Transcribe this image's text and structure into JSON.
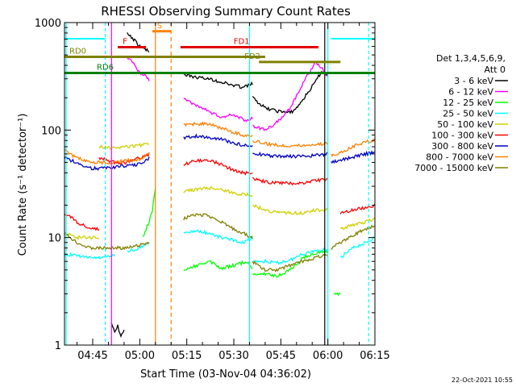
{
  "chart_data": {
    "type": "line",
    "title": "RHESSI Observing Summary Count Rates",
    "xlabel": "Start Time (03-Nov-04 04:36:02)",
    "ylabel": "Count Rate (s⁻¹ detector⁻¹)",
    "yscale": "log",
    "ylim": [
      1,
      1000
    ],
    "xlim_minutes": [
      36,
      135
    ],
    "x_tick_labels": [
      "04:45",
      "05:00",
      "05:15",
      "05:30",
      "05:45",
      "06:00",
      "06:15"
    ],
    "y_tick_labels": [
      "1",
      "10",
      "100",
      "1000"
    ],
    "legend_header": [
      "Det 1,3,4,5,6,9,",
      "Att 0"
    ],
    "legend_position": "right",
    "timestamp": "22-Oct-2021 10:55",
    "flags": [
      {
        "label": "S",
        "color": "#ff8000",
        "start": 64,
        "end": 70,
        "level": 830
      },
      {
        "label": "F",
        "color": "#e00000",
        "start": 53,
        "end": 62,
        "level": 590
      },
      {
        "label": "FD1",
        "color": "#e00000",
        "start": 73,
        "end": 117,
        "level": 590
      },
      {
        "label": "RD0",
        "color": "#808000",
        "start": 36,
        "end": 100,
        "level": 480
      },
      {
        "label": "FD2",
        "color": "#808000",
        "start": 98,
        "end": 124,
        "level": 430
      },
      {
        "label": "RD6",
        "color": "#008000",
        "start": 36,
        "end": 135,
        "level": 340
      }
    ],
    "series": [
      {
        "name": "3 - 6 keV",
        "color": "#000000",
        "segments": [
          [
            [
              51,
              1.6
            ],
            [
              52,
              1.3
            ],
            [
              53,
              1.5
            ],
            [
              54,
              1.2
            ],
            [
              55,
              1.4
            ]
          ],
          [
            [
              56,
              780
            ],
            [
              58,
              700
            ],
            [
              60,
              600
            ],
            [
              62,
              560
            ],
            [
              63,
              530
            ]
          ],
          [
            [
              74,
              330
            ],
            [
              78,
              310
            ],
            [
              82,
              300
            ],
            [
              86,
              280
            ],
            [
              90,
              260
            ],
            [
              93,
              250
            ],
            [
              96,
              270
            ]
          ],
          [
            [
              96,
              200
            ],
            [
              100,
              160
            ],
            [
              104,
              150
            ],
            [
              108,
              145
            ],
            [
              110,
              160
            ],
            [
              113,
              210
            ],
            [
              116,
              280
            ],
            [
              118,
              350
            ],
            [
              120,
              330
            ]
          ]
        ]
      },
      {
        "name": "6 - 12 keV",
        "color": "#ff00ff",
        "segments": [
          [
            [
              56,
              470
            ],
            [
              58,
              420
            ],
            [
              60,
              340
            ],
            [
              62,
              320
            ],
            [
              63,
              290
            ]
          ],
          [
            [
              74,
              200
            ],
            [
              78,
              170
            ],
            [
              82,
              150
            ],
            [
              86,
              130
            ],
            [
              90,
              140
            ],
            [
              94,
              120
            ],
            [
              96,
              130
            ]
          ],
          [
            [
              96,
              110
            ],
            [
              100,
              100
            ],
            [
              104,
              120
            ],
            [
              108,
              160
            ],
            [
              112,
              270
            ],
            [
              116,
              430
            ],
            [
              118,
              380
            ],
            [
              120,
              310
            ]
          ]
        ]
      },
      {
        "name": "12 - 25 keV",
        "color": "#00ff00",
        "segments": [
          [
            [
              61,
              10
            ],
            [
              62,
              12
            ],
            [
              63,
              14
            ],
            [
              64,
              18
            ],
            [
              65,
              30
            ]
          ],
          [
            [
              74,
              5
            ],
            [
              78,
              5.5
            ],
            [
              82,
              6
            ],
            [
              86,
              5.2
            ],
            [
              90,
              5.5
            ],
            [
              94,
              6
            ],
            [
              96,
              5.2
            ]
          ],
          [
            [
              96,
              4.5
            ],
            [
              100,
              4.6
            ],
            [
              104,
              4.4
            ],
            [
              108,
              5
            ],
            [
              112,
              6.5
            ],
            [
              116,
              7.2
            ],
            [
              120,
              7.5
            ]
          ],
          [
            [
              122,
              3
            ],
            [
              124,
              3
            ]
          ]
        ]
      },
      {
        "name": "25 - 50 keV",
        "color": "#00ffff",
        "segments": [
          [
            [
              36,
              7
            ],
            [
              40,
              6.8
            ],
            [
              44,
              6.5
            ],
            [
              48,
              6.5
            ],
            [
              52,
              6.8
            ]
          ],
          [
            [
              56,
              7.5
            ],
            [
              60,
              8
            ],
            [
              63,
              9
            ]
          ],
          [
            [
              74,
              11
            ],
            [
              78,
              11.5
            ],
            [
              82,
              11
            ],
            [
              86,
              10
            ],
            [
              90,
              9.5
            ],
            [
              93,
              9
            ],
            [
              96,
              10
            ]
          ],
          [
            [
              96,
              6
            ],
            [
              100,
              6
            ],
            [
              104,
              5.8
            ],
            [
              108,
              6.2
            ],
            [
              112,
              7
            ],
            [
              116,
              7.6
            ],
            [
              120,
              7.8
            ]
          ],
          [
            [
              124,
              6.5
            ],
            [
              128,
              8
            ],
            [
              132,
              9
            ],
            [
              135,
              10
            ]
          ]
        ]
      },
      {
        "name": "50 - 100 keV",
        "color": "#d0d000",
        "segments": [
          [
            [
              36,
              11
            ],
            [
              40,
              10
            ],
            [
              44,
              10
            ],
            [
              47,
              10
            ]
          ],
          [
            [
              47,
              70
            ],
            [
              52,
              68
            ],
            [
              56,
              70
            ],
            [
              60,
              72
            ],
            [
              63,
              75
            ]
          ],
          [
            [
              74,
              27
            ],
            [
              78,
              28
            ],
            [
              82,
              29
            ],
            [
              86,
              28
            ],
            [
              90,
              26
            ],
            [
              94,
              25
            ],
            [
              96,
              25
            ]
          ],
          [
            [
              96,
              20
            ],
            [
              100,
              18
            ],
            [
              104,
              17
            ],
            [
              108,
              17
            ],
            [
              112,
              17
            ],
            [
              116,
              18
            ],
            [
              120,
              18
            ]
          ],
          [
            [
              124,
              12
            ],
            [
              128,
              13
            ],
            [
              132,
              14
            ],
            [
              135,
              15
            ]
          ]
        ]
      },
      {
        "name": "100 - 300 keV",
        "color": "#ff0000",
        "segments": [
          [
            [
              36,
              17
            ],
            [
              40,
              14
            ],
            [
              44,
              12
            ],
            [
              47,
              12
            ]
          ],
          [
            [
              47,
              55
            ],
            [
              52,
              50
            ],
            [
              56,
              50
            ],
            [
              60,
              55
            ],
            [
              63,
              60
            ]
          ],
          [
            [
              74,
              48
            ],
            [
              78,
              52
            ],
            [
              82,
              52
            ],
            [
              86,
              48
            ],
            [
              90,
              42
            ],
            [
              93,
              40
            ],
            [
              96,
              40
            ]
          ],
          [
            [
              96,
              36
            ],
            [
              100,
              33
            ],
            [
              104,
              32
            ],
            [
              108,
              32
            ],
            [
              112,
              32
            ],
            [
              116,
              34
            ],
            [
              120,
              35
            ]
          ],
          [
            [
              124,
              17
            ],
            [
              128,
              18
            ],
            [
              132,
              19
            ],
            [
              135,
              20
            ]
          ]
        ]
      },
      {
        "name": "300 - 800 keV",
        "color": "#0000c0",
        "segments": [
          [
            [
              36,
              55
            ],
            [
              40,
              50
            ],
            [
              44,
              44
            ],
            [
              48,
              44
            ],
            [
              52,
              45
            ],
            [
              56,
              47
            ],
            [
              60,
              48
            ],
            [
              63,
              55
            ]
          ],
          [
            [
              74,
              85
            ],
            [
              78,
              88
            ],
            [
              82,
              86
            ],
            [
              86,
              82
            ],
            [
              90,
              76
            ],
            [
              93,
              72
            ],
            [
              96,
              72
            ]
          ],
          [
            [
              96,
              62
            ],
            [
              100,
              58
            ],
            [
              104,
              57
            ],
            [
              108,
              57
            ],
            [
              112,
              57
            ],
            [
              116,
              58
            ],
            [
              120,
              60
            ]
          ],
          [
            [
              121,
              50
            ],
            [
              124,
              52
            ],
            [
              128,
              56
            ],
            [
              132,
              60
            ],
            [
              135,
              62
            ]
          ]
        ]
      },
      {
        "name": "800 - 7000 keV",
        "color": "#ff8000",
        "segments": [
          [
            [
              36,
              65
            ],
            [
              40,
              55
            ],
            [
              44,
              50
            ],
            [
              48,
              50
            ],
            [
              52,
              50
            ],
            [
              56,
              52
            ],
            [
              60,
              54
            ],
            [
              63,
              60
            ]
          ],
          [
            [
              74,
              110
            ],
            [
              78,
              115
            ],
            [
              82,
              113
            ],
            [
              86,
              105
            ],
            [
              90,
              95
            ],
            [
              93,
              90
            ],
            [
              96,
              88
            ]
          ],
          [
            [
              96,
              80
            ],
            [
              100,
              75
            ],
            [
              104,
              72
            ],
            [
              108,
              72
            ],
            [
              112,
              72
            ],
            [
              116,
              74
            ],
            [
              120,
              75
            ]
          ],
          [
            [
              121,
              58
            ],
            [
              124,
              62
            ],
            [
              128,
              70
            ],
            [
              132,
              78
            ],
            [
              135,
              80
            ]
          ]
        ]
      },
      {
        "name": "7000 - 15000 keV",
        "color": "#808000",
        "segments": [
          [
            [
              36,
              11
            ],
            [
              40,
              9
            ],
            [
              44,
              8
            ],
            [
              48,
              8
            ],
            [
              52,
              8
            ],
            [
              56,
              8
            ],
            [
              60,
              8.5
            ],
            [
              63,
              9
            ]
          ],
          [
            [
              74,
              15
            ],
            [
              78,
              16.5
            ],
            [
              82,
              16
            ],
            [
              86,
              14
            ],
            [
              90,
              12
            ],
            [
              93,
              11
            ],
            [
              96,
              10
            ]
          ],
          [
            [
              96,
              6
            ],
            [
              100,
              5
            ],
            [
              104,
              5
            ],
            [
              108,
              5.5
            ],
            [
              112,
              6
            ],
            [
              116,
              6.5
            ],
            [
              120,
              7
            ]
          ],
          [
            [
              121,
              8
            ],
            [
              124,
              9
            ],
            [
              128,
              10.5
            ],
            [
              132,
              12
            ],
            [
              135,
              13
            ]
          ]
        ]
      }
    ]
  }
}
